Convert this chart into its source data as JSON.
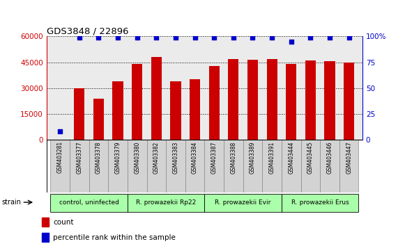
{
  "title": "GDS3848 / 22896",
  "samples": [
    "GSM403281",
    "GSM403377",
    "GSM403378",
    "GSM403379",
    "GSM403380",
    "GSM403382",
    "GSM403383",
    "GSM403384",
    "GSM403387",
    "GSM403388",
    "GSM403389",
    "GSM403391",
    "GSM403444",
    "GSM403445",
    "GSM403446",
    "GSM403447"
  ],
  "counts": [
    200,
    30000,
    24000,
    34000,
    44000,
    48000,
    34000,
    35000,
    43000,
    47000,
    46500,
    47000,
    44000,
    46000,
    45500,
    45000
  ],
  "percentile_ranks": [
    8,
    99,
    99,
    99,
    99,
    99,
    99,
    99,
    99,
    99,
    99,
    99,
    95,
    99,
    99,
    99
  ],
  "group_data": [
    {
      "start": 0,
      "end": 3,
      "label": "control, uninfected"
    },
    {
      "start": 4,
      "end": 7,
      "label": "R. prowazekii Rp22"
    },
    {
      "start": 8,
      "end": 11,
      "label": "R. prowazekii Evir"
    },
    {
      "start": 12,
      "end": 15,
      "label": "R. prowazekii Erus"
    }
  ],
  "bar_color": "#cc0000",
  "dot_color": "#0000cc",
  "left_yticks": [
    0,
    15000,
    30000,
    45000,
    60000
  ],
  "right_yticks": [
    0,
    25,
    50,
    75,
    100
  ],
  "ylim_left": [
    0,
    60000
  ],
  "ylim_right": [
    0,
    100
  ],
  "left_ycolor": "#cc0000",
  "right_ycolor": "#0000cc",
  "background_color": "#ffffff",
  "plot_bg_color": "#ebebeb",
  "group_color": "#aaffaa",
  "sample_box_color": "#d3d3d3"
}
